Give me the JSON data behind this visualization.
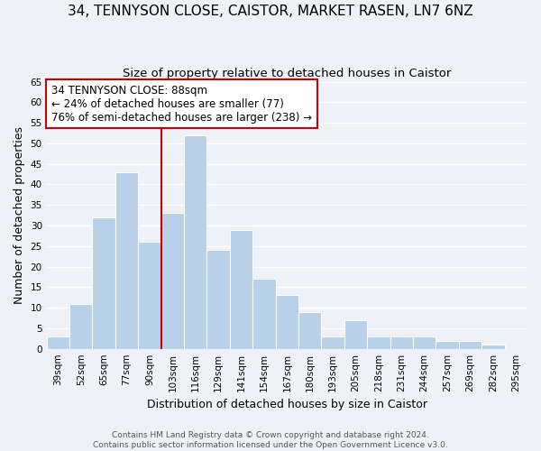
{
  "title": "34, TENNYSON CLOSE, CAISTOR, MARKET RASEN, LN7 6NZ",
  "subtitle": "Size of property relative to detached houses in Caistor",
  "xlabel": "Distribution of detached houses by size in Caistor",
  "ylabel": "Number of detached properties",
  "categories": [
    "39sqm",
    "52sqm",
    "65sqm",
    "77sqm",
    "90sqm",
    "103sqm",
    "116sqm",
    "129sqm",
    "141sqm",
    "154sqm",
    "167sqm",
    "180sqm",
    "193sqm",
    "205sqm",
    "218sqm",
    "231sqm",
    "244sqm",
    "257sqm",
    "269sqm",
    "282sqm",
    "295sqm"
  ],
  "values": [
    3,
    11,
    32,
    43,
    26,
    33,
    52,
    24,
    29,
    17,
    13,
    9,
    3,
    7,
    3,
    3,
    3,
    2,
    2,
    1,
    0
  ],
  "bar_color": "#b8d0e8",
  "bar_edge_color": "#ffffff",
  "background_color": "#eef2f8",
  "grid_color": "#ffffff",
  "vline_x": 4.5,
  "vline_color": "#cc0000",
  "annotation_title": "34 TENNYSON CLOSE: 88sqm",
  "annotation_line1": "← 24% of detached houses are smaller (77)",
  "annotation_line2": "76% of semi-detached houses are larger (238) →",
  "annotation_box_color": "#ffffff",
  "annotation_box_edge": "#cc0000",
  "ylim": [
    0,
    65
  ],
  "yticks": [
    0,
    5,
    10,
    15,
    20,
    25,
    30,
    35,
    40,
    45,
    50,
    55,
    60,
    65
  ],
  "footer_line1": "Contains HM Land Registry data © Crown copyright and database right 2024.",
  "footer_line2": "Contains public sector information licensed under the Open Government Licence v3.0.",
  "title_fontsize": 11,
  "subtitle_fontsize": 9.5,
  "axis_label_fontsize": 9,
  "tick_fontsize": 7.5,
  "annotation_fontsize": 8.5,
  "footer_fontsize": 6.5
}
